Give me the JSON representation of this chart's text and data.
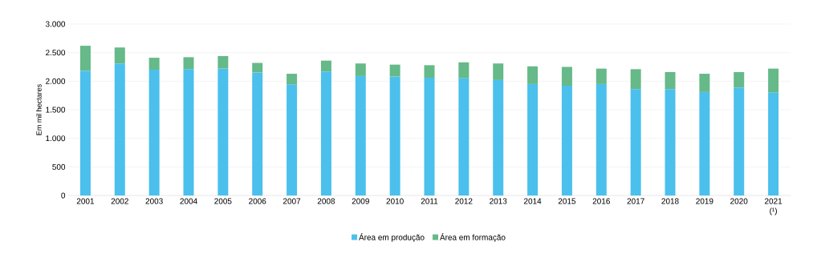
{
  "chart_data": {
    "type": "bar",
    "stacked": true,
    "ylabel": "Em mil hectares",
    "categories": [
      "2001",
      "2002",
      "2003",
      "2004",
      "2005",
      "2006",
      "2007",
      "2008",
      "2009",
      "2010",
      "2011",
      "2012",
      "2013",
      "2014",
      "2015",
      "2016",
      "2017",
      "2018",
      "2019",
      "2020",
      "2021 (¹)"
    ],
    "series": [
      {
        "name": "Área em produção",
        "color": "#4bc0ec",
        "values": [
          2180,
          2310,
          2200,
          2210,
          2220,
          2150,
          1940,
          2170,
          2090,
          2080,
          2060,
          2050,
          2020,
          1950,
          1920,
          1950,
          1860,
          1860,
          1810,
          1890,
          1800
        ]
      },
      {
        "name": "Área em formação",
        "color": "#66b988",
        "values": [
          440,
          280,
          210,
          210,
          220,
          170,
          190,
          190,
          220,
          210,
          220,
          280,
          290,
          310,
          330,
          270,
          350,
          300,
          320,
          270,
          420
        ]
      }
    ],
    "ylim": [
      0,
      3000
    ],
    "yticks": [
      {
        "value": 0,
        "label": "0"
      },
      {
        "value": 500,
        "label": "500"
      },
      {
        "value": 1000,
        "label": "1.000"
      },
      {
        "value": 1500,
        "label": "1.500"
      },
      {
        "value": 2000,
        "label": "2.000"
      },
      {
        "value": 2500,
        "label": "2.500"
      },
      {
        "value": 3000,
        "label": "3.000"
      }
    ],
    "grid": "y",
    "legend": "bottom"
  }
}
